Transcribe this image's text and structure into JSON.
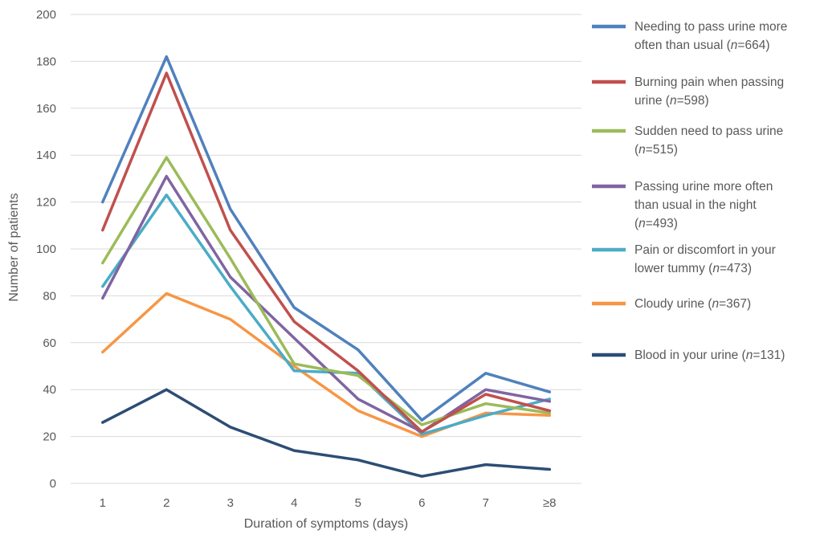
{
  "chart_data": {
    "type": "line",
    "title": "",
    "xlabel": "Duration of symptoms (days)",
    "ylabel": "Number of patients",
    "categories": [
      "1",
      "2",
      "3",
      "4",
      "5",
      "6",
      "7",
      "≥8"
    ],
    "ylim": [
      0,
      200
    ],
    "yticks": [
      0,
      20,
      40,
      60,
      80,
      100,
      120,
      140,
      160,
      180,
      200
    ],
    "grid": "horizontal",
    "legend_position": "right",
    "series": [
      {
        "name": "Needing to pass urine more often than usual (n=664)",
        "legend_lines": [
          [
            {
              "t": "Needing to pass urine more"
            }
          ],
          [
            {
              "t": "often than usual ("
            },
            {
              "t": "n",
              "i": true
            },
            {
              "t": "=664)"
            }
          ]
        ],
        "color": "#4F81BD",
        "values": [
          120,
          182,
          117,
          75,
          57,
          27,
          47,
          39
        ]
      },
      {
        "name": "Burning pain when passing urine (n=598)",
        "legend_lines": [
          [
            {
              "t": "Burning pain when passing"
            }
          ],
          [
            {
              "t": "urine ("
            },
            {
              "t": "n",
              "i": true
            },
            {
              "t": "=598)"
            }
          ]
        ],
        "color": "#C0504D",
        "values": [
          108,
          175,
          108,
          69,
          48,
          22,
          38,
          31
        ]
      },
      {
        "name": "Sudden need to pass urine (n=515)",
        "legend_lines": [
          [
            {
              "t": "Sudden need to pass urine"
            }
          ],
          [
            {
              "t": "("
            },
            {
              "t": "n",
              "i": true
            },
            {
              "t": "=515)"
            }
          ]
        ],
        "color": "#9BBB59",
        "values": [
          94,
          139,
          96,
          51,
          46,
          25,
          34,
          30
        ]
      },
      {
        "name": "Passing urine more often than usual in the night (n=493)",
        "legend_lines": [
          [
            {
              "t": "Passing urine more often"
            }
          ],
          [
            {
              "t": "than usual in the night"
            }
          ],
          [
            {
              "t": "("
            },
            {
              "t": "n",
              "i": true
            },
            {
              "t": "=493)"
            }
          ]
        ],
        "color": "#8064A2",
        "values": [
          79,
          131,
          88,
          62,
          36,
          22,
          40,
          35
        ]
      },
      {
        "name": "Pain or discomfort in your lower tummy (n=473)",
        "legend_lines": [
          [
            {
              "t": "Pain or discomfort in your"
            }
          ],
          [
            {
              "t": "lower tummy ("
            },
            {
              "t": "n",
              "i": true
            },
            {
              "t": "=473)"
            }
          ]
        ],
        "color": "#4BACC6",
        "values": [
          84,
          123,
          84,
          48,
          47,
          21,
          29,
          36
        ]
      },
      {
        "name": "Cloudy urine (n=367)",
        "legend_lines": [
          [
            {
              "t": "Cloudy urine ("
            },
            {
              "t": "n",
              "i": true
            },
            {
              "t": "=367)"
            }
          ]
        ],
        "color": "#F79646",
        "values": [
          56,
          81,
          70,
          50,
          31,
          20,
          30,
          29
        ]
      },
      {
        "name": "Blood in your urine (n=131)",
        "legend_lines": [
          [
            {
              "t": "Blood in your urine ("
            },
            {
              "t": "n",
              "i": true
            },
            {
              "t": "=131)"
            }
          ]
        ],
        "color": "#2C4D75",
        "values": [
          26,
          40,
          24,
          14,
          10,
          3,
          8,
          6
        ]
      }
    ]
  }
}
